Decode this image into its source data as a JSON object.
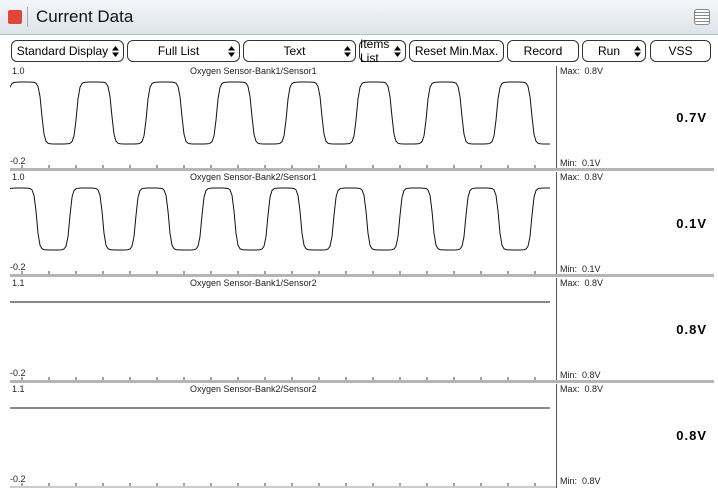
{
  "header": {
    "title": "Current Data"
  },
  "toolbar": {
    "buttons": [
      "Standard Display",
      "Full List",
      "Text",
      "Items List",
      "Reset Min.Max.",
      "Record",
      "Run",
      "VSS"
    ]
  },
  "panels": [
    {
      "name": "Oxygen Sensor-Bank1/Sensor1",
      "top": "1.0",
      "bottom": "-0.2",
      "max": "Max:  0.8V",
      "min": "Min:  0.1V",
      "value": "0.7V"
    },
    {
      "name": "Oxygen Sensor-Bank2/Sensor1",
      "top": "1.0",
      "bottom": "-0.2",
      "max": "Max:  0.8V",
      "min": "Min:  0.1V",
      "value": "0.1V"
    },
    {
      "name": "Oxygen Sensor-Bank1/Sensor2",
      "top": "1.1",
      "bottom": "-0.2",
      "max": "Max:  0.8V",
      "min": "Min:  0.8V",
      "value": "0.8V"
    },
    {
      "name": "Oxygen Sensor-Bank2/Sensor2",
      "top": "1.1",
      "bottom": "-0.2",
      "max": "Max:  0.8V",
      "min": "Min:  0.8V",
      "value": "0.8V"
    }
  ]
}
